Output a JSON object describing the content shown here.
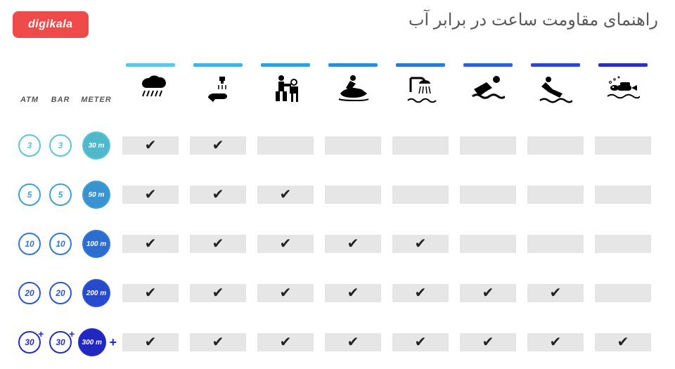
{
  "logo": "digikala",
  "title": "راهنمای مقاومت ساعت در برابر آب",
  "headers": {
    "atm": "ATM",
    "bar": "BAR",
    "meter": "METER"
  },
  "activities": [
    {
      "name": "rain",
      "bar_color": "#5bc5ea"
    },
    {
      "name": "hand-wash",
      "bar_color": "#3eb4e6"
    },
    {
      "name": "work",
      "bar_color": "#2fa1e0"
    },
    {
      "name": "jetski",
      "bar_color": "#2a8de0"
    },
    {
      "name": "shower",
      "bar_color": "#2a78de"
    },
    {
      "name": "swim",
      "bar_color": "#2a5fdd"
    },
    {
      "name": "dive",
      "bar_color": "#2946d6"
    },
    {
      "name": "scuba",
      "bar_color": "#2a2fc9"
    }
  ],
  "rows": [
    {
      "atm": "3",
      "bar": "3",
      "meter": "30 m",
      "ring": "#5bc5d5",
      "fill": "#4fb9cb",
      "plus": false,
      "checks": [
        true,
        true,
        false,
        false,
        false,
        false,
        false,
        false
      ]
    },
    {
      "atm": "5",
      "bar": "5",
      "meter": "50 m",
      "ring": "#3fa0d6",
      "fill": "#3893ce",
      "plus": false,
      "checks": [
        true,
        true,
        true,
        false,
        false,
        false,
        false,
        false
      ]
    },
    {
      "atm": "10",
      "bar": "10",
      "meter": "100 m",
      "ring": "#2f78d5",
      "fill": "#2d6dcf",
      "plus": false,
      "checks": [
        true,
        true,
        true,
        true,
        true,
        false,
        false,
        false
      ]
    },
    {
      "atm": "20",
      "bar": "20",
      "meter": "200 m",
      "ring": "#2a55d0",
      "fill": "#274acc",
      "plus": false,
      "checks": [
        true,
        true,
        true,
        true,
        true,
        true,
        true,
        false
      ]
    },
    {
      "atm": "30",
      "bar": "30",
      "meter": "300 m",
      "ring": "#252cc4",
      "fill": "#2227bf",
      "plus": true,
      "checks": [
        true,
        true,
        true,
        true,
        true,
        true,
        true,
        true
      ]
    }
  ],
  "style": {
    "cell_bg": "#e6e6e6",
    "check_color": "#222222",
    "plus_label": "+",
    "plus_color": "#1c2bd0"
  }
}
